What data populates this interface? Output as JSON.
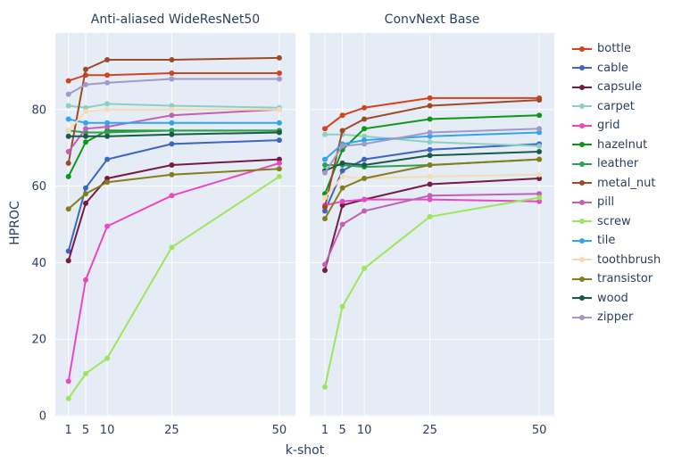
{
  "theme": {
    "background": "#ffffff",
    "plot_bg": "#e5ecf6",
    "grid_color": "#ffffff",
    "text_color": "#2a3f5f"
  },
  "chart_data": {
    "type": "line",
    "x": [
      1,
      5,
      10,
      25,
      50
    ],
    "xlabel": "k-shot",
    "ylabel": "HPROC",
    "ylim": [
      0,
      100
    ],
    "yticks": [
      0,
      20,
      40,
      60,
      80
    ],
    "grid": true,
    "legend_position": "right",
    "legend": [
      {
        "label": "bottle",
        "color": "#d5421e"
      },
      {
        "label": "cable",
        "color": "#3c66c4"
      },
      {
        "label": "capsule",
        "color": "#761b41"
      },
      {
        "label": "carpet",
        "color": "#8ecfc2"
      },
      {
        "label": "grid",
        "color": "#e947c5"
      },
      {
        "label": "hazelnut",
        "color": "#109618"
      },
      {
        "label": "leather",
        "color": "#2da14e"
      },
      {
        "label": "metal_nut",
        "color": "#9e4a26"
      },
      {
        "label": "pill",
        "color": "#c061b3"
      },
      {
        "label": "screw",
        "color": "#9ce65c"
      },
      {
        "label": "tile",
        "color": "#32a5f0"
      },
      {
        "label": "toothbrush",
        "color": "#f3ddb3"
      },
      {
        "label": "transistor",
        "color": "#857d1b"
      },
      {
        "label": "wood",
        "color": "#1a5a49"
      },
      {
        "label": "zipper",
        "color": "#a09ac8"
      }
    ],
    "subplots": [
      {
        "title": "Anti-aliased WideResNet50",
        "values": {
          "bottle": [
            87.5,
            89,
            89,
            89.5,
            89.5
          ],
          "cable": [
            43,
            59.5,
            67,
            71,
            72
          ],
          "capsule": [
            40.5,
            55.5,
            62,
            65.5,
            67
          ],
          "carpet": [
            81,
            80.5,
            81.5,
            81,
            80.5
          ],
          "grid": [
            9,
            35.5,
            49.5,
            57.5,
            66
          ],
          "hazelnut": [
            62.5,
            71.5,
            74.5,
            74.5,
            74.5
          ],
          "leather": [
            74.5,
            74,
            74,
            74.5,
            74.5
          ],
          "metal_nut": [
            66,
            90.5,
            93,
            93,
            93.5
          ],
          "pill": [
            69,
            75,
            75.5,
            78.5,
            80
          ],
          "screw": [
            4.5,
            11,
            15,
            44,
            62.5
          ],
          "tile": [
            77.5,
            76.5,
            76.5,
            76.5,
            76.5
          ],
          "toothbrush": [
            74.5,
            79.5,
            80,
            80,
            80
          ],
          "transistor": [
            54,
            58,
            61,
            63,
            64.5
          ],
          "wood": [
            73,
            73,
            73,
            73.5,
            74
          ],
          "zipper": [
            84,
            86.5,
            87,
            88,
            88
          ]
        }
      },
      {
        "title": "ConvNext Base",
        "values": {
          "bottle": [
            75,
            78.5,
            80.5,
            83,
            83
          ],
          "cable": [
            53.5,
            64,
            67,
            69.5,
            71
          ],
          "capsule": [
            38,
            55,
            56.5,
            60.5,
            62
          ],
          "carpet": [
            73.5,
            73.5,
            73,
            71.5,
            70.5
          ],
          "grid": [
            55,
            56,
            56.5,
            56.5,
            56
          ],
          "hazelnut": [
            58,
            69.5,
            75,
            77.5,
            78.5
          ],
          "leather": [
            65.5,
            65.5,
            65,
            65.5,
            67
          ],
          "metal_nut": [
            54.5,
            74.5,
            77.5,
            81,
            82.5
          ],
          "pill": [
            39.5,
            50,
            53.5,
            57.5,
            58
          ],
          "screw": [
            7.5,
            28.5,
            38.5,
            52,
            57
          ],
          "tile": [
            67,
            71,
            72,
            73,
            74
          ],
          "toothbrush": [
            57,
            62.5,
            62,
            62.5,
            63
          ],
          "transistor": [
            51.5,
            59.5,
            62,
            65.5,
            67
          ],
          "wood": [
            64,
            66,
            65.5,
            68,
            69
          ],
          "zipper": [
            63.5,
            70.5,
            71,
            74,
            75
          ]
        }
      }
    ]
  }
}
